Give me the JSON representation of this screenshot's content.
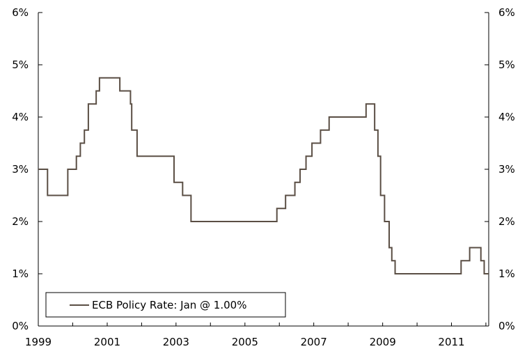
{
  "chart_data": {
    "type": "line",
    "title": "",
    "xlabel": "",
    "ylabel": "",
    "x_tick_labels": [
      "1999",
      "2001",
      "2003",
      "2005",
      "2007",
      "2009",
      "2011"
    ],
    "y_tick_labels": [
      "0%",
      "1%",
      "2%",
      "3%",
      "4%",
      "5%",
      "6%"
    ],
    "xlim": [
      "1999-01-01",
      "2012-01-31"
    ],
    "ylim": [
      0,
      6
    ],
    "grid": false,
    "legend_position": "bottom-left",
    "series": [
      {
        "name": "ECB Policy Rate: Jan @ 1.00%",
        "color": "#5a4e44",
        "step": true,
        "points": [
          {
            "date": "1999-01-01",
            "value": 3.0
          },
          {
            "date": "1999-04-09",
            "value": 2.5
          },
          {
            "date": "1999-11-10",
            "value": 3.0
          },
          {
            "date": "2000-02-09",
            "value": 3.25
          },
          {
            "date": "2000-03-22",
            "value": 3.5
          },
          {
            "date": "2000-05-04",
            "value": 3.75
          },
          {
            "date": "2000-06-15",
            "value": 4.25
          },
          {
            "date": "2000-09-06",
            "value": 4.5
          },
          {
            "date": "2000-10-11",
            "value": 4.75
          },
          {
            "date": "2001-05-15",
            "value": 4.5
          },
          {
            "date": "2001-09-05",
            "value": 4.25
          },
          {
            "date": "2001-09-18",
            "value": 3.75
          },
          {
            "date": "2001-11-14",
            "value": 3.25
          },
          {
            "date": "2002-12-11",
            "value": 2.75
          },
          {
            "date": "2003-03-12",
            "value": 2.5
          },
          {
            "date": "2003-06-09",
            "value": 2.0
          },
          {
            "date": "2005-12-06",
            "value": 2.25
          },
          {
            "date": "2006-03-08",
            "value": 2.5
          },
          {
            "date": "2006-06-15",
            "value": 2.75
          },
          {
            "date": "2006-08-09",
            "value": 3.0
          },
          {
            "date": "2006-10-11",
            "value": 3.25
          },
          {
            "date": "2006-12-13",
            "value": 3.5
          },
          {
            "date": "2007-03-14",
            "value": 3.75
          },
          {
            "date": "2007-06-13",
            "value": 4.0
          },
          {
            "date": "2008-07-09",
            "value": 4.25
          },
          {
            "date": "2008-10-08",
            "value": 3.75
          },
          {
            "date": "2008-11-12",
            "value": 3.25
          },
          {
            "date": "2008-12-10",
            "value": 2.5
          },
          {
            "date": "2009-01-21",
            "value": 2.0
          },
          {
            "date": "2009-03-11",
            "value": 1.5
          },
          {
            "date": "2009-04-08",
            "value": 1.25
          },
          {
            "date": "2009-05-13",
            "value": 1.0
          },
          {
            "date": "2011-04-13",
            "value": 1.25
          },
          {
            "date": "2011-07-13",
            "value": 1.5
          },
          {
            "date": "2011-11-09",
            "value": 1.25
          },
          {
            "date": "2011-12-14",
            "value": 1.0
          },
          {
            "date": "2012-01-31",
            "value": 1.0
          }
        ]
      }
    ]
  }
}
